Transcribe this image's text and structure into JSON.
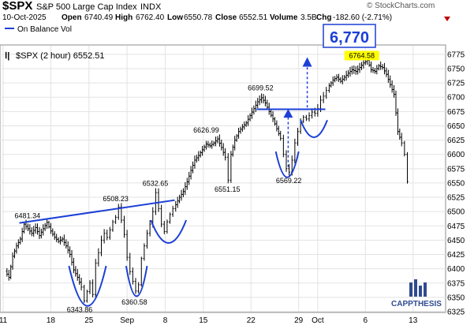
{
  "header": {
    "symbol": "$SPX",
    "name": "S&P 500 Large Cap Index",
    "exchange": "INDX",
    "date": "10-Oct-2025",
    "open_label": "Open",
    "open": "6740.49",
    "high_label": "High",
    "high": "6762.40",
    "low_label": "Low",
    "low": "6550.78",
    "close_label": "Close",
    "close": "6552.51",
    "volume_label": "Volume",
    "volume": "3.5B",
    "chg_label": "Chg",
    "chg": "-182.60 (-2.71%)",
    "watermark": "© StockCharts.com"
  },
  "indicator_label": "On Balance Vol",
  "series_label": "$SPX (2 hour) 6552.51",
  "callout_target": "6,770",
  "brand": "CAPPTHESIS",
  "colors": {
    "price": "#000000",
    "trendline": "#1c3fd6",
    "annotation": "#1c3fd6",
    "highlight": "#ffff00",
    "chg_down": "#c00000",
    "brand": "#2f4b8f",
    "grid": "#e3e3e3"
  },
  "chart_data": {
    "type": "bar",
    "subtype": "ohlc-2hour",
    "ylim": [
      6325,
      6790
    ],
    "x_range": [
      0,
      46
    ],
    "y_ticks": [
      6325,
      6350,
      6375,
      6400,
      6425,
      6450,
      6475,
      6500,
      6525,
      6550,
      6575,
      6600,
      6625,
      6650,
      6675,
      6700,
      6725,
      6750,
      6775
    ],
    "x_ticks": [
      {
        "x": 0,
        "label": "11"
      },
      {
        "x": 5,
        "label": "18"
      },
      {
        "x": 9,
        "label": "25"
      },
      {
        "x": 13,
        "label": "Sep"
      },
      {
        "x": 17,
        "label": "8"
      },
      {
        "x": 21,
        "label": "15"
      },
      {
        "x": 26,
        "label": "22"
      },
      {
        "x": 31,
        "label": "29"
      },
      {
        "x": 33,
        "label": "Oct"
      },
      {
        "x": 38,
        "label": "6"
      },
      {
        "x": 43,
        "label": "13"
      }
    ],
    "price": [
      [
        0.2,
        6396
      ],
      [
        0.6,
        6385
      ],
      [
        1.0,
        6422
      ],
      [
        1.4,
        6440
      ],
      [
        1.8,
        6452
      ],
      [
        2.2,
        6478
      ],
      [
        2.6,
        6470
      ],
      [
        3.0,
        6462
      ],
      [
        3.4,
        6472
      ],
      [
        3.8,
        6458
      ],
      [
        4.2,
        6470
      ],
      [
        4.6,
        6481
      ],
      [
        5.0,
        6466
      ],
      [
        5.4,
        6455
      ],
      [
        5.8,
        6448
      ],
      [
        6.2,
        6452
      ],
      [
        6.6,
        6440
      ],
      [
        7.0,
        6425
      ],
      [
        7.4,
        6398
      ],
      [
        7.8,
        6385
      ],
      [
        8.2,
        6368
      ],
      [
        8.5,
        6344
      ],
      [
        8.8,
        6360
      ],
      [
        9.1,
        6375
      ],
      [
        9.4,
        6355
      ],
      [
        9.7,
        6410
      ],
      [
        10.0,
        6428
      ],
      [
        10.3,
        6450
      ],
      [
        10.6,
        6462
      ],
      [
        10.9,
        6455
      ],
      [
        11.2,
        6468
      ],
      [
        11.5,
        6482
      ],
      [
        11.8,
        6490
      ],
      [
        12.1,
        6508
      ],
      [
        12.4,
        6485
      ],
      [
        12.7,
        6460
      ],
      [
        13.0,
        6420
      ],
      [
        13.3,
        6395
      ],
      [
        13.6,
        6378
      ],
      [
        13.9,
        6361
      ],
      [
        14.2,
        6372
      ],
      [
        14.5,
        6418
      ],
      [
        14.8,
        6440
      ],
      [
        15.1,
        6462
      ],
      [
        15.4,
        6478
      ],
      [
        15.7,
        6500
      ],
      [
        16.0,
        6533
      ],
      [
        16.3,
        6505
      ],
      [
        16.6,
        6478
      ],
      [
        16.9,
        6465
      ],
      [
        17.2,
        6482
      ],
      [
        17.5,
        6495
      ],
      [
        17.8,
        6505
      ],
      [
        18.1,
        6512
      ],
      [
        18.5,
        6525
      ],
      [
        18.9,
        6535
      ],
      [
        19.3,
        6552
      ],
      [
        19.7,
        6572
      ],
      [
        20.1,
        6590
      ],
      [
        20.5,
        6598
      ],
      [
        20.9,
        6608
      ],
      [
        21.3,
        6618
      ],
      [
        21.7,
        6615
      ],
      [
        22.1,
        6620
      ],
      [
        22.5,
        6627
      ],
      [
        22.9,
        6612
      ],
      [
        23.3,
        6595
      ],
      [
        23.6,
        6555
      ],
      [
        23.9,
        6600
      ],
      [
        24.3,
        6625
      ],
      [
        24.7,
        6640
      ],
      [
        25.1,
        6648
      ],
      [
        25.5,
        6655
      ],
      [
        25.9,
        6668
      ],
      [
        26.3,
        6680
      ],
      [
        26.7,
        6692
      ],
      [
        27.1,
        6699
      ],
      [
        27.5,
        6690
      ],
      [
        27.9,
        6675
      ],
      [
        28.3,
        6662
      ],
      [
        28.7,
        6645
      ],
      [
        29.1,
        6628
      ],
      [
        29.4,
        6600
      ],
      [
        29.7,
        6575
      ],
      [
        30.0,
        6569
      ],
      [
        30.3,
        6590
      ],
      [
        30.6,
        6620
      ],
      [
        30.9,
        6640
      ],
      [
        31.2,
        6658
      ],
      [
        31.5,
        6665
      ],
      [
        31.8,
        6662
      ],
      [
        32.1,
        6668
      ],
      [
        32.4,
        6674
      ],
      [
        32.7,
        6672
      ],
      [
        33.0,
        6680
      ],
      [
        33.3,
        6695
      ],
      [
        33.6,
        6702
      ],
      [
        33.9,
        6712
      ],
      [
        34.2,
        6720
      ],
      [
        34.6,
        6730
      ],
      [
        35.0,
        6735
      ],
      [
        35.4,
        6728
      ],
      [
        35.8,
        6735
      ],
      [
        36.2,
        6742
      ],
      [
        36.6,
        6748
      ],
      [
        37.0,
        6745
      ],
      [
        37.4,
        6752
      ],
      [
        37.8,
        6760
      ],
      [
        38.2,
        6764.58
      ],
      [
        38.6,
        6748
      ],
      [
        39.0,
        6745
      ],
      [
        39.4,
        6755
      ],
      [
        39.8,
        6752
      ],
      [
        40.2,
        6740
      ],
      [
        40.6,
        6722
      ],
      [
        41.0,
        6705
      ],
      [
        41.4,
        6640
      ],
      [
        41.8,
        6620
      ],
      [
        42.1,
        6600
      ],
      [
        42.4,
        6552.51
      ]
    ],
    "trendlines": [
      {
        "from": [
          1.7,
          6480
        ],
        "to": [
          18.0,
          6520
        ]
      },
      {
        "from": [
          26.6,
          6679
        ],
        "to": [
          33.8,
          6679
        ]
      }
    ],
    "target_arrow": {
      "x": 31.9,
      "from": 6682,
      "to": 6770
    },
    "breakout_arrow": {
      "x": 29.9,
      "from": 6578,
      "to": 6678
    },
    "cups": [
      {
        "x1": 6.9,
        "x2": 10.8,
        "bottom": 6335,
        "rim": 6405
      },
      {
        "x1": 12.9,
        "x2": 15.1,
        "bottom": 6352,
        "rim": 6405
      },
      {
        "x1": 15.5,
        "x2": 19.2,
        "bottom": 6445,
        "rim": 6485
      },
      {
        "x1": 28.6,
        "x2": 31.0,
        "bottom": 6560,
        "rim": 6605
      },
      {
        "x1": 31.2,
        "x2": 34.0,
        "bottom": 6630,
        "rim": 6660
      }
    ],
    "annotations": [
      {
        "x": 1.7,
        "y": 6481.34,
        "label": "6481.34",
        "dx": -6,
        "dy": -5,
        "anchor": "start"
      },
      {
        "x": 9.0,
        "y": 6343.86,
        "label": "6343.86",
        "dx": -28,
        "dy": 14,
        "anchor": "start"
      },
      {
        "x": 11.8,
        "y": 6508.23,
        "label": "6508.23",
        "dx": 0,
        "dy": -7,
        "anchor": "middle"
      },
      {
        "x": 14.1,
        "y": 6360.58,
        "label": "6360.58",
        "dx": -4,
        "dy": 17,
        "anchor": "middle"
      },
      {
        "x": 15.8,
        "y": 6532.65,
        "label": "6532.65",
        "dx": 2,
        "dy": -9,
        "anchor": "middle"
      },
      {
        "x": 21.3,
        "y": 6626.99,
        "label": "6626.99",
        "dx": 0,
        "dy": -8,
        "anchor": "middle"
      },
      {
        "x": 23.6,
        "y": 6551.15,
        "label": "6551.15",
        "dx": -1,
        "dy": 12,
        "anchor": "middle"
      },
      {
        "x": 27.0,
        "y": 6699.52,
        "label": "6699.52",
        "dx": 0,
        "dy": -9,
        "anchor": "middle"
      },
      {
        "x": 29.8,
        "y": 6569.22,
        "label": "6569.22",
        "dx": 2,
        "dy": 14,
        "anchor": "middle"
      },
      {
        "x": 38.2,
        "y": 6764.58,
        "label": "6764.58",
        "dx": -7,
        "dy": -3,
        "anchor": "middle",
        "highlight": true
      }
    ]
  }
}
